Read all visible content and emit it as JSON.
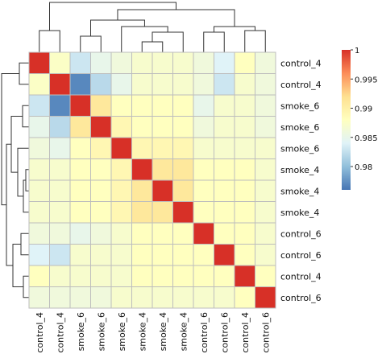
{
  "chart_data": {
    "type": "heatmap",
    "title": "",
    "row_labels": [
      "control_4",
      "control_4",
      "smoke_6",
      "smoke_6",
      "smoke_6",
      "smoke_4",
      "smoke_4",
      "smoke_4",
      "control_6",
      "control_6",
      "control_4",
      "control_6"
    ],
    "col_labels": [
      "control_4",
      "control_4",
      "smoke_6",
      "smoke_6",
      "smoke_6",
      "smoke_4",
      "smoke_4",
      "smoke_4",
      "control_6",
      "control_6",
      "control_4",
      "control_6"
    ],
    "values": [
      [
        1.0,
        0.9875,
        0.983,
        0.985,
        0.986,
        0.987,
        0.987,
        0.987,
        0.986,
        0.984,
        0.988,
        0.986
      ],
      [
        0.9875,
        1.0,
        0.977,
        0.982,
        0.985,
        0.987,
        0.987,
        0.987,
        0.986,
        0.983,
        0.987,
        0.986
      ],
      [
        0.983,
        0.977,
        1.0,
        0.991,
        0.988,
        0.988,
        0.988,
        0.988,
        0.985,
        0.987,
        0.987,
        0.986
      ],
      [
        0.985,
        0.982,
        0.991,
        1.0,
        0.989,
        0.988,
        0.988,
        0.988,
        0.986,
        0.987,
        0.987,
        0.986
      ],
      [
        0.986,
        0.985,
        0.988,
        0.989,
        1.0,
        0.989,
        0.989,
        0.989,
        0.987,
        0.987,
        0.987,
        0.987
      ],
      [
        0.987,
        0.987,
        0.988,
        0.988,
        0.989,
        1.0,
        0.991,
        0.991,
        0.988,
        0.988,
        0.988,
        0.987
      ],
      [
        0.987,
        0.987,
        0.988,
        0.988,
        0.989,
        0.991,
        1.0,
        0.991,
        0.988,
        0.988,
        0.988,
        0.987
      ],
      [
        0.987,
        0.987,
        0.988,
        0.988,
        0.989,
        0.991,
        0.991,
        1.0,
        0.988,
        0.988,
        0.988,
        0.987
      ],
      [
        0.986,
        0.986,
        0.985,
        0.986,
        0.987,
        0.988,
        0.988,
        0.988,
        1.0,
        0.988,
        0.988,
        0.987
      ],
      [
        0.984,
        0.983,
        0.987,
        0.987,
        0.987,
        0.988,
        0.988,
        0.988,
        0.988,
        1.0,
        0.988,
        0.987
      ],
      [
        0.988,
        0.987,
        0.987,
        0.987,
        0.987,
        0.988,
        0.988,
        0.988,
        0.988,
        0.988,
        1.0,
        0.988
      ],
      [
        0.986,
        0.986,
        0.986,
        0.986,
        0.987,
        0.987,
        0.987,
        0.987,
        0.987,
        0.987,
        0.988,
        1.0
      ]
    ],
    "colorbar": {
      "min": 0.976,
      "max": 1.0,
      "ticks": [
        "1",
        "0.995",
        "0.99",
        "0.985",
        "0.98"
      ],
      "tick_values": [
        1.0,
        0.995,
        0.99,
        0.985,
        0.98
      ],
      "colors": [
        "#4575b4",
        "#91bfdb",
        "#e0f3f8",
        "#ffffbf",
        "#fee090",
        "#fc8d59",
        "#d73027"
      ]
    },
    "grid": true,
    "legend": "right",
    "dendrograms": [
      "top",
      "left"
    ]
  }
}
